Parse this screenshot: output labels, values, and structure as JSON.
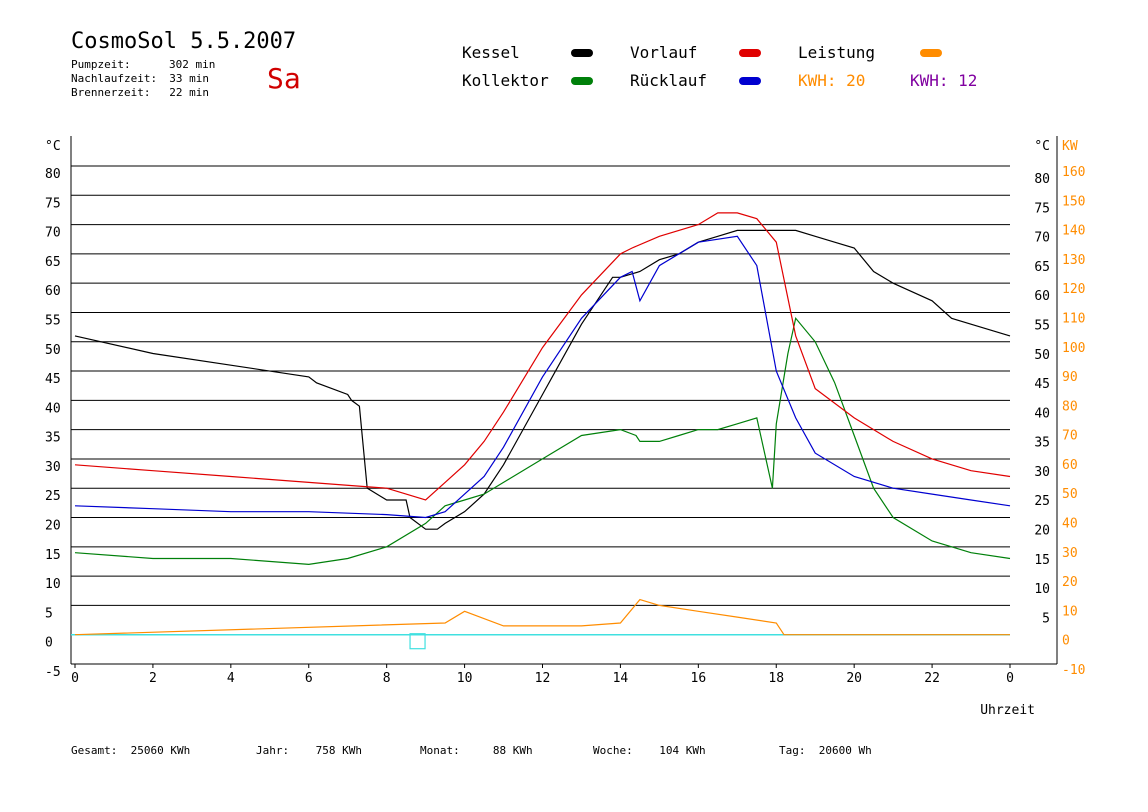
{
  "header": {
    "title": "CosmoSol 5.5.2007",
    "day": "Sa",
    "stats": [
      {
        "label": "Pumpzeit:",
        "value": "302 min"
      },
      {
        "label": "Nachlaufzeit:",
        "value": "33 min"
      },
      {
        "label": "Brennerzeit:",
        "value": "22 min"
      }
    ]
  },
  "legend": {
    "kessel": "Kessel",
    "kollektor": "Kollektor",
    "vorlauf": "Vorlauf",
    "ruecklauf": "Rücklauf",
    "leistung": "Leistung",
    "kwh_a_label": "KWH:",
    "kwh_a_value": "20",
    "kwh_b_label": "KWH:",
    "kwh_b_value": "12"
  },
  "colors": {
    "kessel": "#000000",
    "kollektor": "#00800a",
    "vorlauf": "#e00000",
    "ruecklauf": "#0000d0",
    "leistung": "#ff8c00",
    "leistung2": "#8000a0",
    "baseline": "#40e0e0"
  },
  "footer": {
    "gesamt_label": "Gesamt:",
    "gesamt_value": "25060 KWh",
    "jahr_label": "Jahr:",
    "jahr_value": "758 KWh",
    "monat_label": "Monat:",
    "monat_value": "88 KWh",
    "woche_label": "Woche:",
    "woche_value": "104 KWh",
    "tag_label": "Tag:",
    "tag_value": "20600 Wh"
  },
  "chart_data": {
    "type": "line",
    "xlabel": "Uhrzeit",
    "xlim": [
      0,
      24
    ],
    "x_ticks": [
      "0",
      "2",
      "4",
      "6",
      "8",
      "10",
      "12",
      "14",
      "16",
      "18",
      "20",
      "22",
      "0"
    ],
    "ylim": [
      -5,
      80
    ],
    "y_left_unit": "°C",
    "y_left_ticks": [
      "80",
      "75",
      "70",
      "65",
      "60",
      "55",
      "50",
      "45",
      "40",
      "35",
      "30",
      "25",
      "20",
      "15",
      "10",
      "5",
      "0",
      "-5"
    ],
    "y_right_unit": "°C",
    "y_right_ticks": [
      "80",
      "75",
      "70",
      "65",
      "60",
      "55",
      "50",
      "45",
      "40",
      "35",
      "30",
      "25",
      "20",
      "15",
      "10",
      "5"
    ],
    "y_kw_unit": "KW",
    "y_kw_ticks": [
      "160",
      "150",
      "140",
      "130",
      "120",
      "110",
      "100",
      "90",
      "80",
      "70",
      "60",
      "50",
      "40",
      "30",
      "20",
      "10",
      "0",
      "-10"
    ],
    "grid": true,
    "series": [
      {
        "name": "Kessel",
        "x": [
          0,
          2,
          4,
          6,
          6.2,
          7,
          7.1,
          7.3,
          7.5,
          8,
          8.5,
          8.6,
          9,
          9.3,
          9.5,
          10,
          10.5,
          11,
          12,
          13,
          13.8,
          14,
          14.5,
          15,
          15.5,
          16,
          16.5,
          17,
          17.5,
          18,
          18.5,
          19,
          19.5,
          20,
          20.5,
          21,
          22,
          22.5,
          23,
          24
        ],
        "y": [
          51,
          48,
          46,
          44,
          43,
          41,
          40,
          39,
          25,
          23,
          23,
          20,
          18,
          18,
          19,
          21,
          24,
          29,
          41,
          53,
          61,
          61,
          62,
          64,
          65,
          67,
          68,
          69,
          69,
          69,
          69,
          68,
          67,
          66,
          62,
          60,
          57,
          54,
          53,
          51
        ]
      },
      {
        "name": "Kollektor",
        "x": [
          0,
          2,
          4,
          6,
          7,
          8,
          9,
          9.5,
          10,
          10.5,
          11,
          12,
          13,
          14,
          14.4,
          14.5,
          15,
          15.5,
          16,
          16.5,
          17,
          17.5,
          17.9,
          18,
          18.3,
          18.5,
          19,
          19.5,
          20,
          20.5,
          21,
          22,
          22.5,
          23,
          24
        ],
        "y": [
          14,
          13,
          13,
          12,
          13,
          15,
          19,
          22,
          23,
          24,
          26,
          30,
          34,
          35,
          34,
          33,
          33,
          34,
          35,
          35,
          36,
          37,
          25,
          36,
          48,
          54,
          50,
          43,
          34,
          25,
          20,
          16,
          15,
          14,
          13
        ]
      },
      {
        "name": "Vorlauf",
        "x": [
          0,
          2,
          4,
          6,
          8,
          9,
          9.5,
          10,
          10.5,
          11,
          12,
          13,
          14,
          14.3,
          15,
          16,
          16.5,
          17,
          17.5,
          18,
          18.5,
          19,
          20,
          21,
          22,
          23,
          24
        ],
        "y": [
          29,
          28,
          27,
          26,
          25,
          23,
          26,
          29,
          33,
          38,
          49,
          58,
          65,
          66,
          68,
          70,
          72,
          72,
          71,
          67,
          51,
          42,
          37,
          33,
          30,
          28,
          27
        ]
      },
      {
        "name": "Rücklauf",
        "x": [
          0,
          2,
          4,
          6,
          8,
          9,
          9.5,
          10,
          10.5,
          11,
          12,
          13,
          14,
          14.3,
          14.5,
          15,
          16,
          17,
          17.5,
          18,
          18.5,
          19,
          20,
          21,
          22,
          23,
          24
        ],
        "y": [
          22,
          21.5,
          21,
          21,
          20.5,
          20,
          21,
          24,
          27,
          32,
          44,
          54,
          61,
          62,
          57,
          63,
          67,
          68,
          63,
          45,
          37,
          31,
          27,
          25,
          24,
          23,
          22
        ]
      },
      {
        "name": "Leistung",
        "x": [
          0,
          9.5,
          10,
          11,
          12,
          13,
          14,
          14.5,
          15,
          16,
          17,
          18,
          18.2,
          24
        ],
        "y": [
          0,
          2,
          4,
          1.5,
          1.5,
          1.5,
          2,
          6,
          5,
          4,
          3,
          2,
          0,
          0
        ]
      }
    ]
  }
}
